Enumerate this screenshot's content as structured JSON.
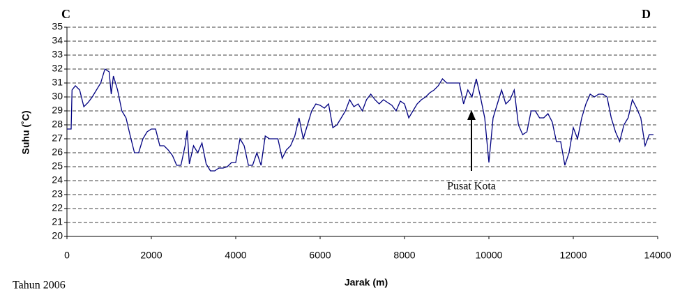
{
  "chart_data": {
    "type": "line",
    "corner_labels": [
      "C",
      "D"
    ],
    "xlabel": "Jarak (m)",
    "ylabel": "Suhu (˚C)",
    "footnote": "Tahun 2006",
    "annotation": "Pusat Kota",
    "color": "#000080",
    "grid": true,
    "xlim": [
      0,
      14000
    ],
    "xticks": [
      0,
      2000,
      4000,
      6000,
      8000,
      10000,
      12000,
      14000
    ],
    "ylim": [
      20,
      35
    ],
    "yticks": [
      20,
      21,
      22,
      23,
      24,
      25,
      26,
      27,
      28,
      29,
      30,
      31,
      32,
      33,
      34,
      35
    ],
    "x": [
      0,
      100,
      120,
      200,
      300,
      400,
      500,
      600,
      700,
      800,
      900,
      1000,
      1050,
      1100,
      1200,
      1300,
      1400,
      1500,
      1600,
      1700,
      1800,
      1900,
      2000,
      2100,
      2200,
      2300,
      2400,
      2500,
      2600,
      2700,
      2800,
      2850,
      2900,
      3000,
      3100,
      3200,
      3300,
      3400,
      3500,
      3600,
      3700,
      3800,
      3900,
      4000,
      4100,
      4200,
      4300,
      4400,
      4500,
      4600,
      4700,
      4800,
      4900,
      5000,
      5100,
      5200,
      5300,
      5400,
      5500,
      5600,
      5700,
      5800,
      5900,
      6000,
      6100,
      6200,
      6300,
      6400,
      6500,
      6600,
      6700,
      6800,
      6900,
      7000,
      7100,
      7200,
      7300,
      7400,
      7500,
      7600,
      7700,
      7800,
      7900,
      8000,
      8100,
      8200,
      8300,
      8400,
      8500,
      8600,
      8700,
      8800,
      8900,
      9000,
      9100,
      9200,
      9300,
      9400,
      9500,
      9600,
      9700,
      9800,
      9900,
      10000,
      10100,
      10200,
      10300,
      10400,
      10500,
      10600,
      10700,
      10800,
      10900,
      11000,
      11100,
      11200,
      11300,
      11400,
      11500,
      11600,
      11700,
      11800,
      11900,
      12000,
      12100,
      12200,
      12300,
      12400,
      12500,
      12600,
      12700,
      12800,
      12900,
      13000,
      13100,
      13200,
      13300,
      13400,
      13500,
      13600,
      13700,
      13800,
      13900
    ],
    "values": [
      27.7,
      27.7,
      30.5,
      30.8,
      30.5,
      29.3,
      29.6,
      30.0,
      30.5,
      31.0,
      32.0,
      31.8,
      30.2,
      31.5,
      30.5,
      29.0,
      28.5,
      27.2,
      26.0,
      26.0,
      27.0,
      27.5,
      27.7,
      27.7,
      26.5,
      26.5,
      26.2,
      25.8,
      25.1,
      25.1,
      26.5,
      27.6,
      25.2,
      26.5,
      26.0,
      26.7,
      25.2,
      24.7,
      24.7,
      24.9,
      24.9,
      25.0,
      25.3,
      25.3,
      27.0,
      26.5,
      25.1,
      25.1,
      26.0,
      25.1,
      27.2,
      27.0,
      27.0,
      27.0,
      25.6,
      26.2,
      26.5,
      27.2,
      28.5,
      27.0,
      28.0,
      29.0,
      29.5,
      29.4,
      29.2,
      29.5,
      27.8,
      28.0,
      28.5,
      29.0,
      29.8,
      29.3,
      29.5,
      29.0,
      29.8,
      30.2,
      29.8,
      29.5,
      29.8,
      29.6,
      29.4,
      29.0,
      29.7,
      29.5,
      28.5,
      29.0,
      29.5,
      29.8,
      30.0,
      30.3,
      30.5,
      30.8,
      31.3,
      31.0,
      31.0,
      31.0,
      31.0,
      29.5,
      30.5,
      30.0,
      31.3,
      30.0,
      28.5,
      25.3,
      28.5,
      29.5,
      30.5,
      29.5,
      29.8,
      30.5,
      28.0,
      27.3,
      27.5,
      29.0,
      29.0,
      28.5,
      28.5,
      28.8,
      28.2,
      26.8,
      26.8,
      25.1,
      26.0,
      27.8,
      27.0,
      28.5,
      29.5,
      30.2,
      30.0,
      30.2,
      30.2,
      30.0,
      28.5,
      27.5,
      26.8,
      28.0,
      28.5,
      29.8,
      29.2,
      28.5,
      26.5,
      27.3,
      27.3
    ]
  }
}
